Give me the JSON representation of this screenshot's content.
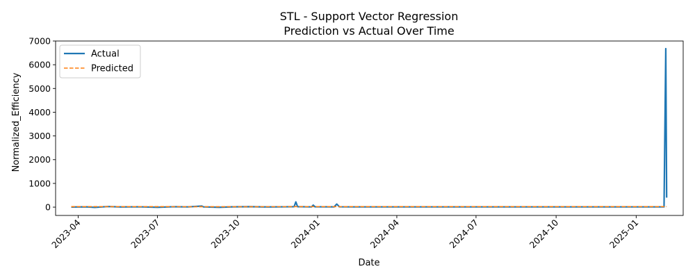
{
  "chart_data": {
    "type": "line",
    "title_line1": "STL - Support Vector Regression",
    "title_line2": "Prediction vs Actual Over Time",
    "xlabel": "Date",
    "ylabel": "Normalized_Efficiency",
    "xlim": [
      "2023-03-06",
      "2025-02-24"
    ],
    "ylim": [
      -350,
      7000
    ],
    "y_ticks": [
      0,
      1000,
      2000,
      3000,
      4000,
      5000,
      6000,
      7000
    ],
    "x_ticks": [
      "2023-04",
      "2023-07",
      "2023-10",
      "2024-01",
      "2024-04",
      "2024-07",
      "2024-10",
      "2025-01"
    ],
    "grid": false,
    "legend_position": "upper-left",
    "series": [
      {
        "name": "Actual",
        "color": "#1f77b4",
        "style": "solid",
        "points": [
          [
            "2023-03-24",
            5
          ],
          [
            "2023-04-10",
            12
          ],
          [
            "2023-04-20",
            -10
          ],
          [
            "2023-05-05",
            25
          ],
          [
            "2023-05-20",
            8
          ],
          [
            "2023-06-10",
            15
          ],
          [
            "2023-07-01",
            -5
          ],
          [
            "2023-07-20",
            18
          ],
          [
            "2023-08-05",
            10
          ],
          [
            "2023-08-21",
            45
          ],
          [
            "2023-08-23",
            10
          ],
          [
            "2023-09-10",
            -5
          ],
          [
            "2023-09-25",
            12
          ],
          [
            "2023-10-15",
            20
          ],
          [
            "2023-11-05",
            8
          ],
          [
            "2023-11-25",
            15
          ],
          [
            "2023-12-05",
            20
          ],
          [
            "2023-12-07",
            220
          ],
          [
            "2023-12-09",
            20
          ],
          [
            "2023-12-25",
            10
          ],
          [
            "2023-12-27",
            85
          ],
          [
            "2023-12-29",
            15
          ],
          [
            "2024-01-20",
            12
          ],
          [
            "2024-01-23",
            130
          ],
          [
            "2024-01-26",
            15
          ],
          [
            "2024-02-15",
            10
          ],
          [
            "2024-04-01",
            10
          ],
          [
            "2024-07-01",
            10
          ],
          [
            "2024-10-01",
            10
          ],
          [
            "2025-01-01",
            10
          ],
          [
            "2025-02-02",
            10
          ],
          [
            "2025-02-04",
            6680
          ],
          [
            "2025-02-05",
            400
          ]
        ]
      },
      {
        "name": "Predicted",
        "color": "#ff7f0e",
        "style": "dashed",
        "points": [
          [
            "2023-03-24",
            20
          ],
          [
            "2023-06-01",
            22
          ],
          [
            "2023-09-01",
            18
          ],
          [
            "2023-12-01",
            20
          ],
          [
            "2024-03-01",
            20
          ],
          [
            "2024-06-01",
            20
          ],
          [
            "2024-09-01",
            20
          ],
          [
            "2024-12-01",
            20
          ],
          [
            "2025-02-05",
            20
          ]
        ]
      }
    ]
  }
}
